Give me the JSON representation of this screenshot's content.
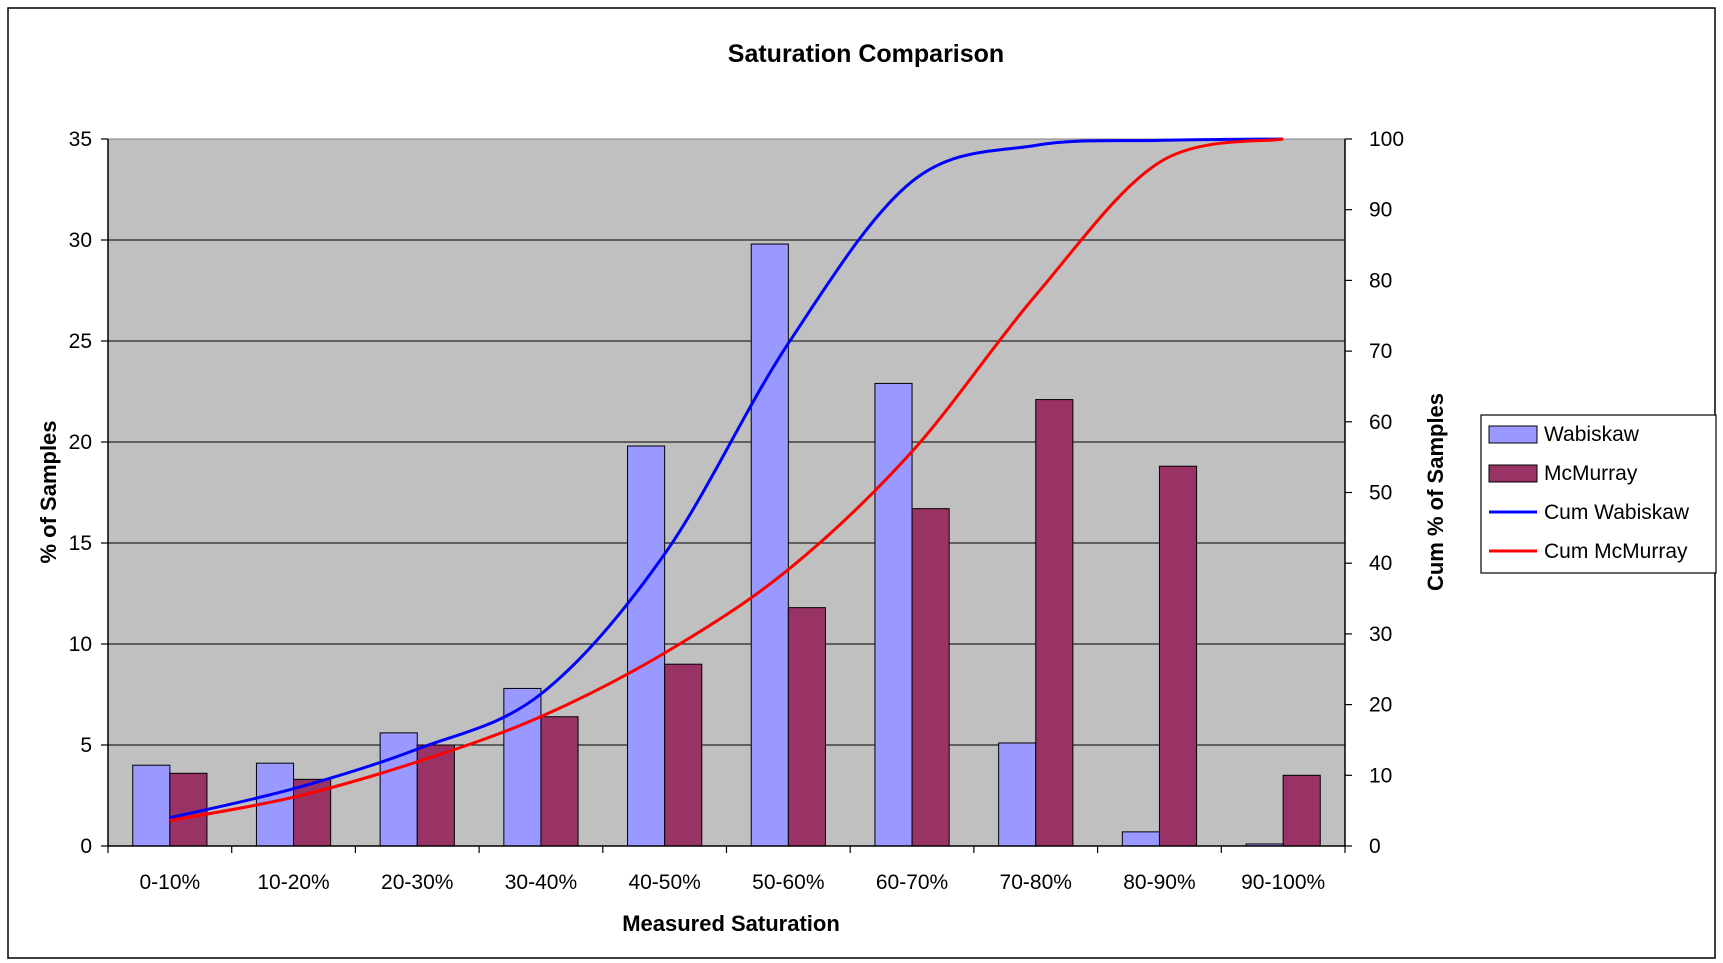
{
  "chart_data": {
    "type": "bar",
    "title": "Saturation Comparison",
    "xlabel": "Measured Saturation",
    "ylabel": "% of Samples",
    "y2label": "Cum % of Samples",
    "ylim": [
      0,
      35
    ],
    "y2lim": [
      0,
      100
    ],
    "yticks": [
      "0",
      "5",
      "10",
      "15",
      "20",
      "25",
      "30",
      "35"
    ],
    "y2ticks": [
      "0",
      "10",
      "20",
      "30",
      "40",
      "50",
      "60",
      "70",
      "80",
      "90",
      "100"
    ],
    "categories": [
      "0-10%",
      "10-20%",
      "20-30%",
      "30-40%",
      "40-50%",
      "50-60%",
      "60-70%",
      "70-80%",
      "80-90%",
      "90-100%"
    ],
    "series": [
      {
        "name": "Wabiskaw",
        "type": "bar",
        "axis": "left",
        "color": "#9999ff",
        "values": [
          4.0,
          4.1,
          5.6,
          7.8,
          19.8,
          29.8,
          22.9,
          5.1,
          0.7,
          0.1
        ]
      },
      {
        "name": "McMurray",
        "type": "bar",
        "axis": "left",
        "color": "#993366",
        "values": [
          3.6,
          3.3,
          5.0,
          6.4,
          9.0,
          11.8,
          16.7,
          22.1,
          18.8,
          3.5
        ]
      },
      {
        "name": "Cum Wabiskaw",
        "type": "line",
        "axis": "right",
        "color": "#0000ff",
        "values": [
          4.0,
          8.1,
          13.7,
          21.5,
          41.3,
          71.1,
          94.0,
          99.1,
          99.8,
          100.0
        ]
      },
      {
        "name": "Cum McMurray",
        "type": "line",
        "axis": "right",
        "color": "#ff0000",
        "values": [
          3.6,
          6.9,
          11.9,
          18.3,
          27.3,
          39.1,
          55.8,
          77.9,
          96.7,
          100.0
        ]
      }
    ],
    "grid": true,
    "legend_position": "right",
    "plot_background": "#c0c0c0"
  }
}
